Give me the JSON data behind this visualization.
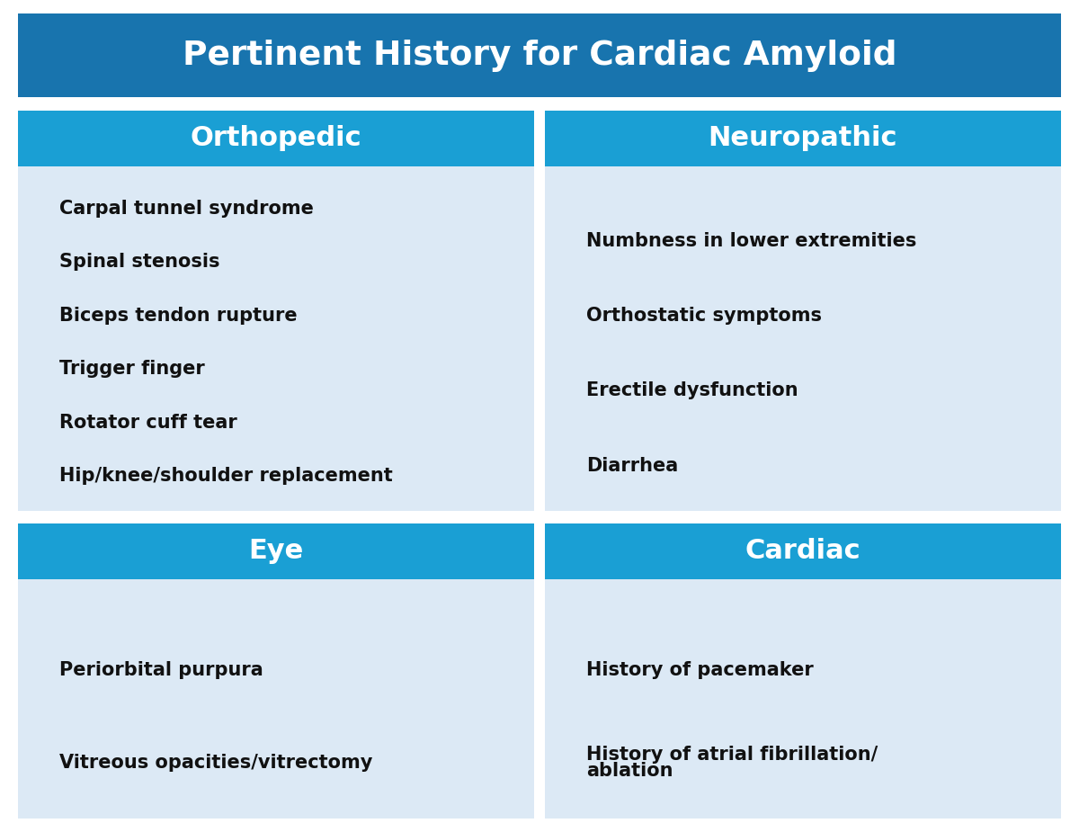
{
  "title": "Pertinent History for Cardiac Amyloid",
  "title_bg": "#1874ae",
  "title_text_color": "#ffffff",
  "header_bg": "#1a9fd4",
  "header_text_color": "#ffffff",
  "content_bg": "#dce9f5",
  "outer_bg": "#ffffff",
  "bullet_color": "#1a9fd4",
  "text_color": "#111111",
  "sections": [
    {
      "header": "Orthopedic",
      "items": [
        "Carpal tunnel syndrome",
        "Spinal stenosis",
        "Biceps tendon rupture",
        "Trigger finger",
        "Rotator cuff tear",
        "Hip/knee/shoulder replacement"
      ],
      "col": 0,
      "row": 0
    },
    {
      "header": "Neuropathic",
      "items": [
        "Numbness in lower extremities",
        "Orthostatic symptoms",
        "Erectile dysfunction",
        "Diarrhea"
      ],
      "col": 1,
      "row": 0
    },
    {
      "header": "Eye",
      "items": [
        "Periorbital purpura",
        "Vitreous opacities/vitrectomy"
      ],
      "col": 0,
      "row": 1
    },
    {
      "header": "Cardiac",
      "items": [
        "History of pacemaker",
        "History of atrial fibrillation/\nablation"
      ],
      "col": 1,
      "row": 1
    }
  ]
}
